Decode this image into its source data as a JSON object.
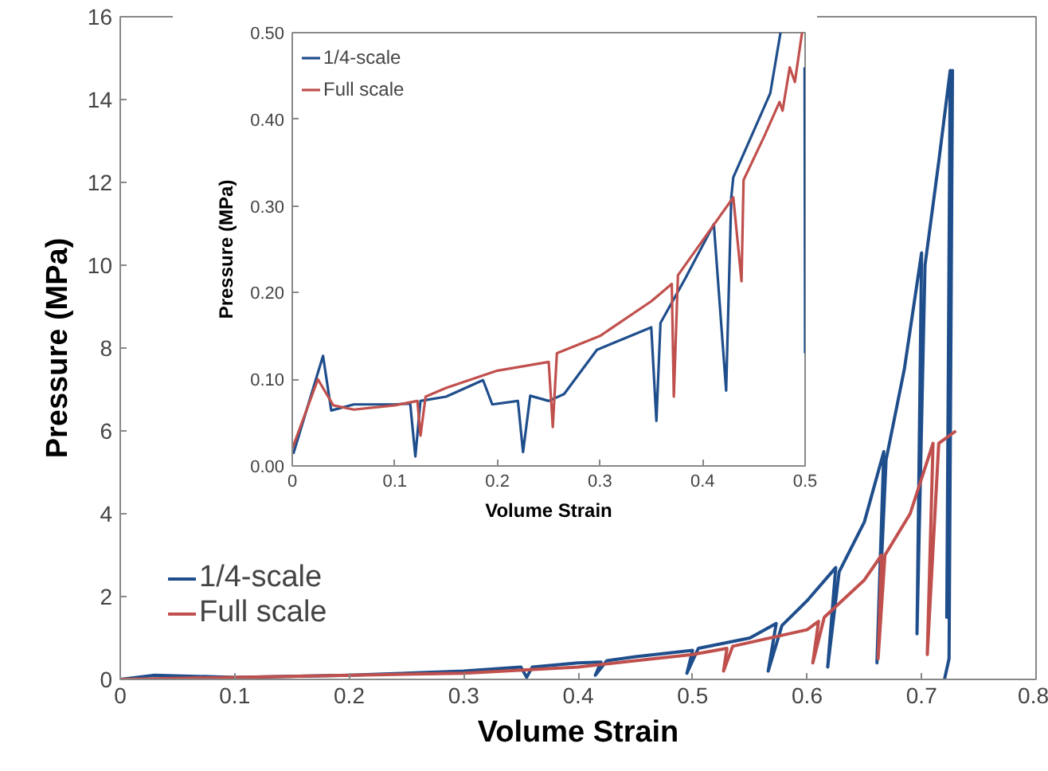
{
  "chart_data": [
    {
      "type": "line",
      "xlabel": "Volume Strain",
      "ylabel": "Pressure (MPa)",
      "xlim": [
        0,
        0.8
      ],
      "ylim": [
        0,
        16
      ],
      "xticks": [
        0,
        0.1,
        0.2,
        0.3,
        0.4,
        0.5,
        0.6,
        0.7,
        0.8
      ],
      "yticks": [
        0,
        2,
        4,
        6,
        8,
        10,
        12,
        14,
        16
      ],
      "legend": "bottom left",
      "series": [
        {
          "name": "1/4-scale",
          "color": "#1f4e8c",
          "x": [
            0,
            0.03,
            0.1,
            0.2,
            0.3,
            0.35,
            0.355,
            0.36,
            0.4,
            0.42,
            0.415,
            0.425,
            0.45,
            0.5,
            0.495,
            0.505,
            0.55,
            0.573,
            0.566,
            0.578,
            0.6,
            0.625,
            0.618,
            0.628,
            0.65,
            0.667,
            0.661,
            0.669,
            0.685,
            0.7,
            0.696,
            0.703,
            0.715,
            0.725,
            0.722,
            0.727,
            0.724,
            0.72
          ],
          "values": [
            0,
            0.1,
            0.05,
            0.1,
            0.2,
            0.3,
            0.05,
            0.3,
            0.4,
            0.42,
            0.1,
            0.45,
            0.55,
            0.7,
            0.15,
            0.75,
            1.0,
            1.35,
            0.2,
            1.3,
            1.9,
            2.7,
            0.3,
            2.6,
            3.8,
            5.5,
            0.4,
            5.3,
            7.5,
            10.3,
            1.1,
            10.0,
            12.5,
            14.7,
            1.5,
            14.7,
            0.5,
            0
          ]
        },
        {
          "name": "Full scale",
          "color": "#c0504d",
          "x": [
            0,
            0.1,
            0.3,
            0.4,
            0.45,
            0.5,
            0.53,
            0.527,
            0.535,
            0.6,
            0.61,
            0.605,
            0.615,
            0.65,
            0.665,
            0.662,
            0.668,
            0.69,
            0.71,
            0.705,
            0.715,
            0.73
          ],
          "values": [
            0,
            0.05,
            0.15,
            0.3,
            0.45,
            0.6,
            0.75,
            0.2,
            0.8,
            1.2,
            1.4,
            0.4,
            1.5,
            2.4,
            3.0,
            0.5,
            3.0,
            4.0,
            5.7,
            0.6,
            5.7,
            6.0
          ]
        }
      ]
    },
    {
      "type": "line",
      "xlabel": "Volume Strain",
      "ylabel": "Pressure (MPa)",
      "xlim": [
        0,
        0.5
      ],
      "ylim": [
        0,
        0.5
      ],
      "xticks": [
        0,
        0.1,
        0.2,
        0.3,
        0.4,
        0.5
      ],
      "yticks": [
        {
          "value": 0,
          "label": "0.00"
        },
        {
          "value": 0.1,
          "label": "0.10"
        },
        {
          "value": 0.2,
          "label": "0.20"
        },
        {
          "value": 0.3,
          "label": "0.30"
        },
        {
          "value": 0.4,
          "label": "0.40"
        },
        {
          "value": 0.5,
          "label": "0.50"
        }
      ],
      "legend": "top left",
      "series": [
        {
          "name": "1/4-scale",
          "color": "#1f4e8c",
          "x": [
            0.001,
            0.03,
            0.038,
            0.06,
            0.1,
            0.115,
            0.12,
            0.125,
            0.15,
            0.186,
            0.195,
            0.22,
            0.225,
            0.232,
            0.25,
            0.265,
            0.297,
            0.35,
            0.355,
            0.359,
            0.383,
            0.411,
            0.423,
            0.428,
            0.43,
            0.466,
            0.476,
            null,
            0.4995,
            0.5
          ],
          "values": [
            0.014,
            0.127,
            0.064,
            0.071,
            0.071,
            0.072,
            0.011,
            0.075,
            0.08,
            0.099,
            0.071,
            0.075,
            0.016,
            0.081,
            0.075,
            0.083,
            0.134,
            0.16,
            0.052,
            0.165,
            0.216,
            0.279,
            0.087,
            0.31,
            0.333,
            0.43,
            0.5,
            null,
            0.46,
            0.13
          ]
        },
        {
          "name": "Full scale",
          "color": "#c0504d",
          "x": [
            0,
            0.025,
            0.04,
            0.06,
            0.1,
            0.122,
            0.125,
            0.13,
            0.15,
            0.2,
            0.25,
            0.254,
            0.258,
            0.3,
            0.35,
            0.37,
            0.372,
            0.376,
            0.4,
            0.43,
            0.438,
            0.44,
            0.46,
            0.475,
            0.478,
            0.485,
            0.49,
            0.497
          ],
          "values": [
            0.02,
            0.1,
            0.07,
            0.065,
            0.07,
            0.075,
            0.035,
            0.08,
            0.09,
            0.11,
            0.12,
            0.045,
            0.13,
            0.15,
            0.19,
            0.21,
            0.08,
            0.22,
            0.26,
            0.31,
            0.213,
            0.33,
            0.38,
            0.42,
            0.41,
            0.46,
            0.443,
            0.5
          ]
        }
      ]
    }
  ]
}
